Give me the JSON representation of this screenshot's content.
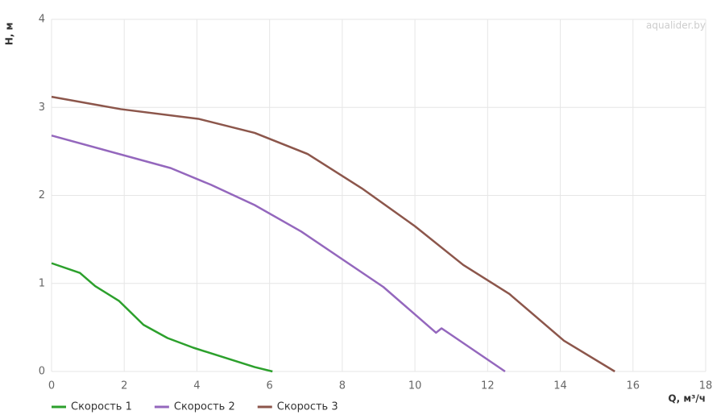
{
  "chart_data": {
    "type": "line",
    "x_label": "Q, м³/ч",
    "y_label": "H, м",
    "watermark": "aqualider.by",
    "xlim": [
      0,
      18
    ],
    "xticks": [
      0,
      2,
      4,
      6,
      8,
      10,
      12,
      14,
      16,
      18
    ],
    "ylim": [
      0,
      4
    ],
    "yticks": [
      0,
      1,
      2,
      3,
      4
    ],
    "grid": true,
    "legend": "bottom-left",
    "series": [
      {
        "name": "Скорость 1",
        "color": "#2ca02c",
        "x": [
          0,
          0.78,
          1.2,
          1.86,
          2.53,
          3.19,
          3.9,
          5.59,
          6.08
        ],
        "values": [
          1.23,
          1.12,
          0.97,
          0.8,
          0.53,
          0.38,
          0.27,
          0.05,
          0
        ]
      },
      {
        "name": "Скорость 2",
        "color": "#9467bd",
        "x": [
          0,
          3.28,
          4.39,
          5.59,
          6.87,
          9.13,
          10.58,
          10.73,
          10.84,
          12.48
        ],
        "values": [
          2.68,
          2.31,
          2.12,
          1.89,
          1.59,
          0.96,
          0.44,
          0.49,
          0.46,
          0
        ]
      },
      {
        "name": "Скорость 3",
        "color": "#8c564b",
        "x": [
          0,
          1.9,
          4.04,
          5.59,
          7.05,
          8.54,
          10,
          11.33,
          12.6,
          14.1,
          15.5
        ],
        "values": [
          3.12,
          2.98,
          2.87,
          2.71,
          2.47,
          2.08,
          1.65,
          1.21,
          0.88,
          0.35,
          0
        ]
      }
    ]
  }
}
